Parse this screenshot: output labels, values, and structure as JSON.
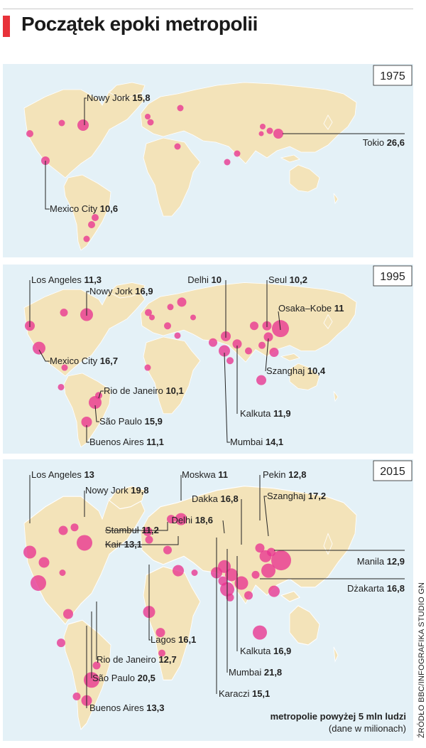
{
  "title": "Początek epoki metropolii",
  "legend": {
    "line1": "metropolie powyżej 5 mln ludzi",
    "line2": "(dane w milionach)"
  },
  "source": "ŹRÓDŁO BBC/INFOGRAFIKA STUDIO GN",
  "colors": {
    "ocean": "#e4f1f7",
    "land": "#f3e3b9",
    "bubble": "#e8338f",
    "accent": "#e8323a",
    "leader": "#222222"
  },
  "panels": [
    {
      "year": "1975",
      "labels": [
        {
          "name": "Nowy Jork",
          "value": "15,8"
        },
        {
          "name": "Tokio",
          "value": "26,6"
        },
        {
          "name": "Mexico City",
          "value": "10,6"
        }
      ]
    },
    {
      "year": "1995",
      "labels": [
        {
          "name": "Los Angeles",
          "value": "11,3"
        },
        {
          "name": "Nowy Jork",
          "value": "16,9"
        },
        {
          "name": "Delhi",
          "value": "10"
        },
        {
          "name": "Seul",
          "value": "10,2"
        },
        {
          "name": "Osaka–Kobe",
          "value": "11"
        },
        {
          "name": "Mexico City",
          "value": "16,7"
        },
        {
          "name": "Szanghaj",
          "value": "10,4"
        },
        {
          "name": "Rio de Janeiro",
          "value": "10,1"
        },
        {
          "name": "São Paulo",
          "value": "15,9"
        },
        {
          "name": "Kalkuta",
          "value": "11,9"
        },
        {
          "name": "Buenos Aires",
          "value": "11,1"
        },
        {
          "name": "Mumbai",
          "value": "14,1"
        }
      ]
    },
    {
      "year": "2015",
      "labels": [
        {
          "name": "Los Angeles",
          "value": "13"
        },
        {
          "name": "Moskwa",
          "value": "11"
        },
        {
          "name": "Pekin",
          "value": "12,8"
        },
        {
          "name": "Nowy Jork",
          "value": "19,8"
        },
        {
          "name": "Dakka",
          "value": "16,8"
        },
        {
          "name": "Szanghaj",
          "value": "17,2"
        },
        {
          "name": "Delhi",
          "value": "18,6"
        },
        {
          "name": "Stambuł",
          "value": "11,2"
        },
        {
          "name": "Kair",
          "value": "13,1"
        },
        {
          "name": "Manila",
          "value": "12,9"
        },
        {
          "name": "Dżakarta",
          "value": "16,8"
        },
        {
          "name": "Lagos",
          "value": "16,1"
        },
        {
          "name": "Rio de Janeiro",
          "value": "12,7"
        },
        {
          "name": "Kalkuta",
          "value": "16,9"
        },
        {
          "name": "São Paulo",
          "value": "20,5"
        },
        {
          "name": "Mumbai",
          "value": "21,8"
        },
        {
          "name": "Buenos Aires",
          "value": "13,3"
        },
        {
          "name": "Karaczi",
          "value": "15,1"
        }
      ]
    }
  ]
}
